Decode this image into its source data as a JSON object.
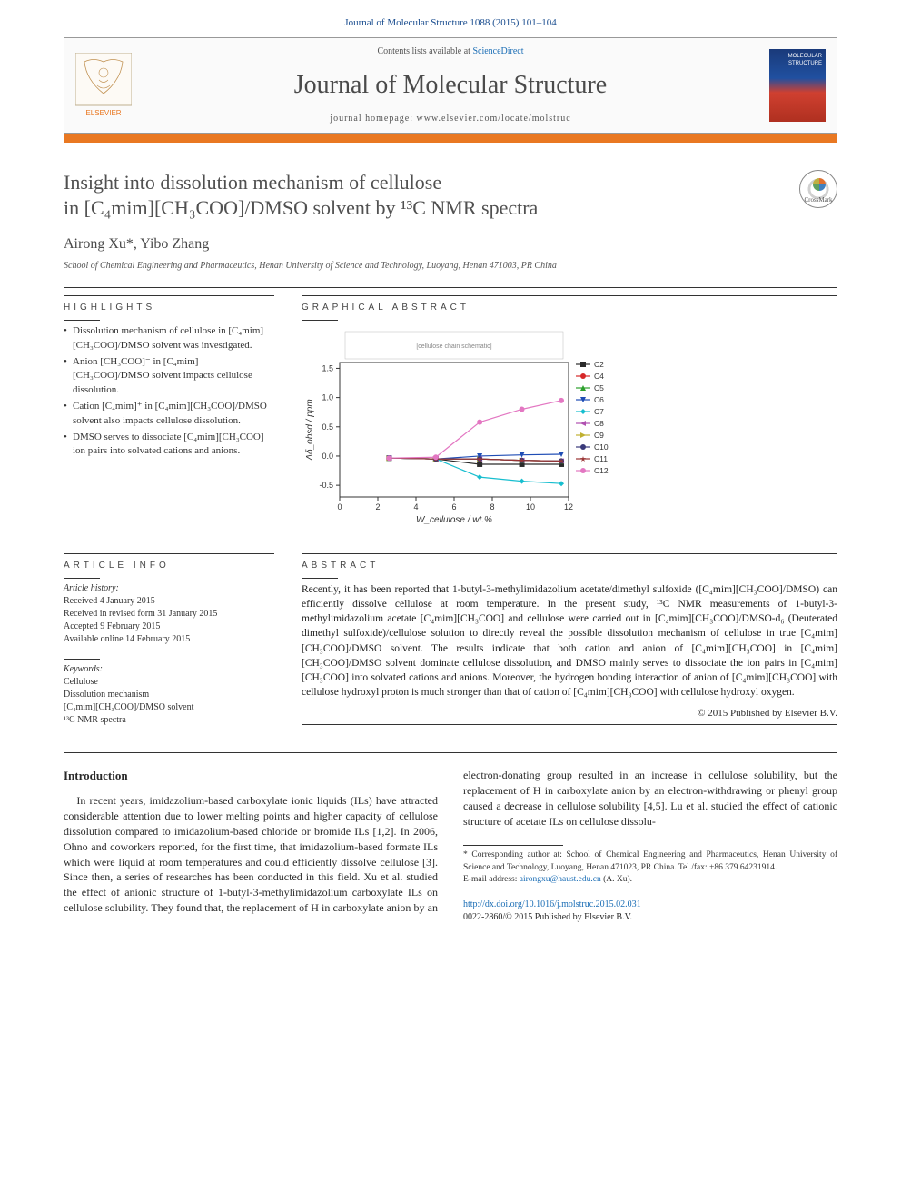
{
  "header": {
    "citation": "Journal of Molecular Structure 1088 (2015) 101–104",
    "contents_prefix": "Contents lists available at ",
    "contents_link": "ScienceDirect",
    "journal_title": "Journal of Molecular Structure",
    "homepage_prefix": "journal homepage: ",
    "homepage_url": "www.elsevier.com/locate/molstruc",
    "cover_text": "MOLECULAR STRUCTURE",
    "accent_color": "#e97822"
  },
  "crossmark_label": "CrossMark",
  "title_line1": "Insight into dissolution mechanism of cellulose",
  "title_line2": "in [C₄mim][CH₃COO]/DMSO solvent by ¹³C NMR spectra",
  "authors": "Airong Xu*, Yibo Zhang",
  "corr_link": "*",
  "affiliation": "School of Chemical Engineering and Pharmaceutics, Henan University of Science and Technology, Luoyang, Henan 471003, PR China",
  "highlights_label": "HIGHLIGHTS",
  "highlights": [
    "Dissolution mechanism of cellulose in [C₄mim][CH₃COO]/DMSO solvent was investigated.",
    "Anion [CH₃COO]⁻ in [C₄mim][CH₃COO]/DMSO solvent impacts cellulose dissolution.",
    "Cation [C₄mim]⁺ in [C₄mim][CH₃COO]/DMSO solvent also impacts cellulose dissolution.",
    "DMSO serves to dissociate [C₄mim][CH₃COO] ion pairs into solvated cations and anions."
  ],
  "graphical_label": "GRAPHICAL ABSTRACT",
  "chart": {
    "type": "line",
    "x_label": "W_cellulose / wt.%",
    "y_label": "Δδ_obsd / ppm",
    "xlim": [
      0,
      12
    ],
    "ylim": [
      -0.7,
      1.6
    ],
    "xticks": [
      0,
      2,
      4,
      6,
      8,
      10,
      12
    ],
    "yticks": [
      -0.5,
      0.0,
      0.5,
      1.0,
      1.5
    ],
    "x_points": [
      2.59,
      5.04,
      7.34,
      9.55,
      11.62
    ],
    "series": [
      {
        "name": "C2",
        "color": "#2b2b2b",
        "marker": "square",
        "y": [
          -0.035,
          -0.05,
          -0.14,
          -0.14,
          -0.14
        ]
      },
      {
        "name": "C4",
        "color": "#d62728",
        "marker": "circle",
        "y": [
          -0.035,
          -0.05,
          -0.05,
          -0.075,
          -0.085
        ]
      },
      {
        "name": "C5",
        "color": "#2ca02c",
        "marker": "triangle-up",
        "y": [
          -0.035,
          -0.05,
          -0.05,
          -0.075,
          -0.085
        ]
      },
      {
        "name": "C6",
        "color": "#1f4db5",
        "marker": "triangle-down",
        "y": [
          -0.035,
          -0.05,
          0.0,
          0.02,
          0.03
        ]
      },
      {
        "name": "C7",
        "color": "#17becf",
        "marker": "diamond",
        "y": [
          -0.035,
          -0.05,
          -0.36,
          -0.43,
          -0.47
        ]
      },
      {
        "name": "C8",
        "color": "#b050b0",
        "marker": "triangle-left",
        "y": [
          -0.035,
          -0.05,
          -0.05,
          -0.075,
          -0.085
        ]
      },
      {
        "name": "C9",
        "color": "#c0b030",
        "marker": "triangle-right",
        "y": [
          -0.035,
          -0.05,
          -0.05,
          -0.075,
          -0.085
        ]
      },
      {
        "name": "C10",
        "color": "#3a3a7a",
        "marker": "circle",
        "y": [
          -0.035,
          -0.05,
          -0.05,
          -0.075,
          -0.085
        ]
      },
      {
        "name": "C11",
        "color": "#993333",
        "marker": "star",
        "y": [
          -0.035,
          -0.05,
          -0.05,
          -0.075,
          -0.085
        ]
      },
      {
        "name": "C12",
        "color": "#e377c2",
        "marker": "circle",
        "y": [
          -0.035,
          -0.02,
          0.58,
          0.8,
          0.95
        ]
      }
    ],
    "inset_top": true,
    "inset_right": true,
    "axis_color": "#333333",
    "label_fontsize": 10,
    "tick_fontsize": 9,
    "background": "#ffffff"
  },
  "article_info_label": "ARTICLE INFO",
  "article_history_label": "Article history:",
  "article_history": [
    "Received 4 January 2015",
    "Received in revised form 31 January 2015",
    "Accepted 9 February 2015",
    "Available online 14 February 2015"
  ],
  "keywords_label": "Keywords:",
  "keywords": [
    "Cellulose",
    "Dissolution mechanism",
    "[C₄mim][CH₃COO]/DMSO solvent",
    "¹³C NMR spectra"
  ],
  "abstract_label": "ABSTRACT",
  "abstract_text": "Recently, it has been reported that 1-butyl-3-methylimidazolium acetate/dimethyl sulfoxide ([C₄mim][CH₃COO]/DMSO) can efficiently dissolve cellulose at room temperature. In the present study, ¹³C NMR measurements of 1-butyl-3-methylimidazolium acetate [C₄mim][CH₃COO] and cellulose were carried out in [C₄mim][CH₃COO]/DMSO-d₆ (Deuterated dimethyl sulfoxide)/cellulose solution to directly reveal the possible dissolution mechanism of cellulose in true [C₄mim][CH₃COO]/DMSO solvent. The results indicate that both cation and anion of [C₄mim][CH₃COO] in [C₄mim][CH₃COO]/DMSO solvent dominate cellulose dissolution, and DMSO mainly serves to dissociate the ion pairs in [C₄mim][CH₃COO] into solvated cations and anions. Moreover, the hydrogen bonding interaction of anion of [C₄mim][CH₃COO] with cellulose hydroxyl proton is much stronger than that of cation of [C₄mim][CH₃COO] with cellulose hydroxyl oxygen.",
  "abstract_copyright": "© 2015 Published by Elsevier B.V.",
  "intro_heading": "Introduction",
  "intro_para1": "In recent years, imidazolium-based carboxylate ionic liquids (ILs) have attracted considerable attention due to lower melting points and higher capacity of cellulose dissolution compared to imidazolium-based chloride or bromide ILs [1,2]. In 2006, Ohno",
  "intro_para2": "and coworkers reported, for the first time, that imidazolium-based formate ILs which were liquid at room temperatures and could efficiently dissolve cellulose [3]. Since then, a series of researches has been conducted in this field. Xu et al. studied the effect of anionic structure of 1-butyl-3-methylimidazolium carboxylate ILs on cellulose solubility. They found that, the replacement of H in carboxylate anion by an electron-donating group resulted in an increase in cellulose solubility, but the replacement of H in carboxylate anion by an electron-withdrawing or phenyl group caused a decrease in cellulose solubility [4,5]. Lu et al. studied the effect of cationic structure of acetate ILs on cellulose dissolu-",
  "footnote": {
    "corr_prefix": "* Corresponding author at: School of Chemical Engineering and Pharmaceutics, Henan University of Science and Technology, Luoyang, Henan 471023, PR China. Tel./fax: +86 379 64231914.",
    "email_label": "E-mail address:",
    "email": "airongxu@haust.edu.cn",
    "email_suffix": "(A. Xu)."
  },
  "bottom": {
    "doi": "http://dx.doi.org/10.1016/j.molstruc.2015.02.031",
    "issn_line": "0022-2860/© 2015 Published by Elsevier B.V."
  }
}
